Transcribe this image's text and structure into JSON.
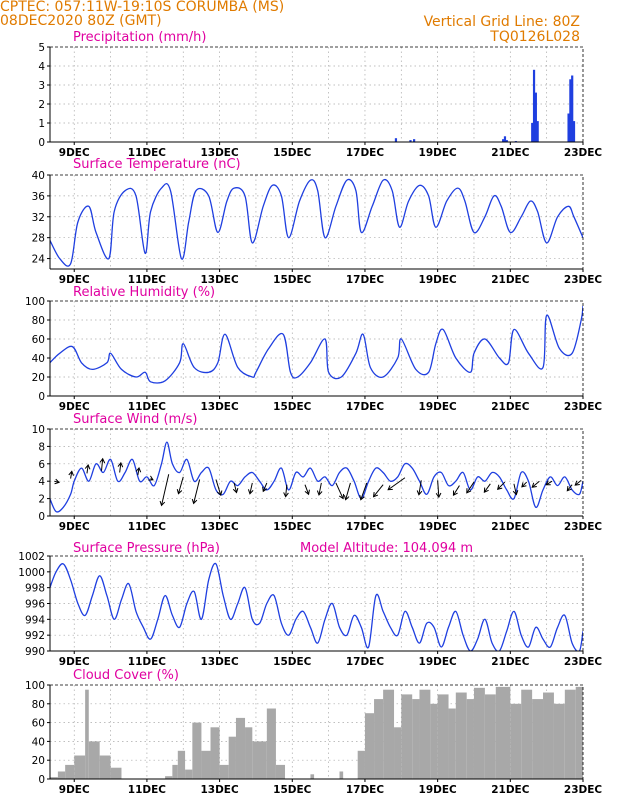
{
  "header": {
    "line1_left": "CPTEC:   057:11W-19:10S   CORUMBA (MS)",
    "line2_left": "08DEC2020 80Z (GMT)",
    "line1_right": "Vertical Grid Line: 80Z",
    "line2_right": "TQ0126L028"
  },
  "colors": {
    "series": "#1f3fe0",
    "title": "#e000a0",
    "header": "#e07b00",
    "cloud": "#a8a8a8",
    "wind_arrow": "#000000",
    "grid": "#aaaaaa"
  },
  "x_axis": {
    "tick_labels": [
      "9DEC",
      "11DEC",
      "13DEC",
      "15DEC",
      "17DEC",
      "19DEC",
      "21DEC",
      "23DEC"
    ]
  },
  "chart_data": [
    {
      "type": "bar",
      "title": "Precipitation (mm/h)",
      "ylim": [
        0,
        5
      ],
      "yticks": [
        0,
        1,
        2,
        3,
        4,
        5
      ],
      "grid": true,
      "x_range_days": [
        8.333,
        23.0
      ],
      "x_unit": "December 2020 (day)",
      "bars": [
        {
          "x": 17.85,
          "y": 0.2
        },
        {
          "x": 18.25,
          "y": 0.1
        },
        {
          "x": 18.35,
          "y": 0.15
        },
        {
          "x": 20.8,
          "y": 0.15
        },
        {
          "x": 20.85,
          "y": 0.3
        },
        {
          "x": 20.9,
          "y": 0.1
        },
        {
          "x": 21.15,
          "y": 0.05
        },
        {
          "x": 21.6,
          "y": 1.0
        },
        {
          "x": 21.65,
          "y": 3.8
        },
        {
          "x": 21.7,
          "y": 2.6
        },
        {
          "x": 21.75,
          "y": 1.1
        },
        {
          "x": 22.6,
          "y": 1.5
        },
        {
          "x": 22.65,
          "y": 3.3
        },
        {
          "x": 22.7,
          "y": 3.5
        },
        {
          "x": 22.75,
          "y": 1.1
        }
      ]
    },
    {
      "type": "line",
      "title": "Surface Temperature (nC)",
      "ylim": [
        22,
        40
      ],
      "yticks": [
        24,
        28,
        32,
        36,
        40
      ],
      "grid": true,
      "x": [
        8.33,
        8.6,
        8.9,
        9.1,
        9.4,
        9.6,
        9.95,
        10.1,
        10.4,
        10.7,
        10.95,
        11.1,
        11.4,
        11.65,
        11.95,
        12.15,
        12.35,
        12.7,
        12.95,
        13.2,
        13.4,
        13.7,
        13.9,
        14.2,
        14.45,
        14.7,
        14.9,
        15.2,
        15.5,
        15.7,
        15.9,
        16.2,
        16.5,
        16.75,
        16.9,
        17.2,
        17.5,
        17.75,
        17.95,
        18.2,
        18.5,
        18.75,
        18.95,
        19.25,
        19.55,
        19.75,
        20.0,
        20.3,
        20.55,
        20.75,
        21.0,
        21.3,
        21.55,
        21.75,
        22.0,
        22.3,
        22.6,
        22.75,
        23.0
      ],
      "y": [
        27.5,
        24,
        23,
        31,
        34,
        29,
        24,
        33,
        37,
        36,
        25,
        33,
        37.5,
        37,
        24,
        31,
        37,
        36,
        29,
        35,
        37.5,
        36,
        27,
        34,
        38,
        36,
        28,
        35,
        39,
        37,
        28,
        34,
        39,
        37,
        29,
        34,
        39,
        37,
        30,
        35,
        38,
        36,
        30,
        35,
        37.5,
        35,
        29,
        32,
        36,
        34,
        29,
        32,
        35,
        33,
        27,
        32,
        34,
        32,
        28
      ]
    },
    {
      "type": "line",
      "title": "Relative Humidity (%)",
      "ylim": [
        0,
        100
      ],
      "yticks": [
        0,
        20,
        40,
        60,
        80,
        100
      ],
      "grid": true,
      "x": [
        8.33,
        8.6,
        8.95,
        9.2,
        9.5,
        9.9,
        10.0,
        10.3,
        10.7,
        10.95,
        11.1,
        11.5,
        11.9,
        12.0,
        12.3,
        12.7,
        12.95,
        13.15,
        13.5,
        13.9,
        14.0,
        14.35,
        14.75,
        14.95,
        15.15,
        15.5,
        15.9,
        16.0,
        16.35,
        16.75,
        16.95,
        17.15,
        17.5,
        17.9,
        18.0,
        18.4,
        18.75,
        18.95,
        19.15,
        19.5,
        19.9,
        20.0,
        20.3,
        20.7,
        20.95,
        21.1,
        21.5,
        21.9,
        22.0,
        22.35,
        22.7,
        22.95,
        23.0
      ],
      "y": [
        35,
        45,
        52,
        35,
        28,
        35,
        45,
        28,
        20,
        25,
        15,
        16,
        35,
        55,
        30,
        25,
        35,
        65,
        30,
        20,
        25,
        50,
        65,
        25,
        20,
        35,
        60,
        25,
        20,
        45,
        65,
        30,
        20,
        40,
        60,
        28,
        25,
        55,
        70,
        40,
        25,
        45,
        60,
        40,
        35,
        70,
        45,
        30,
        85,
        50,
        45,
        80,
        95
      ]
    },
    {
      "type": "line",
      "title": "Surface Wind (m/s)",
      "ylim": [
        0,
        10
      ],
      "yticks": [
        0,
        2,
        4,
        6,
        8,
        10
      ],
      "grid": true,
      "x": [
        8.33,
        8.5,
        8.7,
        8.9,
        9.0,
        9.2,
        9.4,
        9.6,
        9.8,
        10.0,
        10.2,
        10.4,
        10.6,
        10.8,
        11.0,
        11.2,
        11.4,
        11.55,
        11.7,
        11.9,
        12.1,
        12.3,
        12.5,
        12.7,
        12.9,
        13.1,
        13.3,
        13.5,
        13.7,
        13.9,
        14.1,
        14.3,
        14.5,
        14.7,
        14.9,
        15.1,
        15.3,
        15.5,
        15.7,
        15.9,
        16.1,
        16.3,
        16.5,
        16.7,
        16.9,
        17.1,
        17.3,
        17.5,
        17.7,
        17.9,
        18.1,
        18.3,
        18.5,
        18.7,
        18.9,
        19.1,
        19.3,
        19.5,
        19.7,
        19.9,
        20.1,
        20.3,
        20.5,
        20.7,
        20.9,
        21.1,
        21.3,
        21.5,
        21.7,
        21.9,
        22.1,
        22.3,
        22.5,
        22.7,
        22.9,
        23.0
      ],
      "y": [
        2,
        0.5,
        1,
        2.5,
        4,
        5.5,
        4,
        6,
        5,
        6.5,
        4,
        5,
        6.5,
        4,
        4.5,
        3.5,
        6,
        8.5,
        6,
        5,
        6.5,
        4,
        5,
        5.5,
        3,
        2.5,
        4,
        3.5,
        4.5,
        5,
        4,
        3,
        4,
        5.5,
        3,
        5,
        4.5,
        5.5,
        4,
        4.5,
        3.5,
        5,
        5.5,
        4,
        2,
        4,
        5.5,
        5,
        4,
        4.5,
        6,
        5.5,
        4,
        2.5,
        4.5,
        5,
        3.5,
        4,
        5,
        3,
        4.5,
        4,
        5,
        4.5,
        3,
        2,
        5,
        4,
        1,
        3,
        4.5,
        3.5,
        4.5,
        3,
        2.5,
        4
      ],
      "arrows": [
        {
          "x": 8.45,
          "y": 4.0,
          "u": 0.4,
          "v": -0.1
        },
        {
          "x": 8.9,
          "y": 4.3,
          "u": 0.1,
          "v": 0.6
        },
        {
          "x": 9.35,
          "y": 4.9,
          "u": 0.1,
          "v": 0.7
        },
        {
          "x": 9.75,
          "y": 5.2,
          "u": 0.1,
          "v": 1.0
        },
        {
          "x": 10.25,
          "y": 5.0,
          "u": 0.1,
          "v": 0.8
        },
        {
          "x": 10.75,
          "y": 4.7,
          "u": 0.1,
          "v": 0.6
        },
        {
          "x": 11.1,
          "y": 4.3,
          "u": 0.2,
          "v": -0.1
        },
        {
          "x": 11.6,
          "y": 4.8,
          "u": -0.6,
          "v": -2.6
        },
        {
          "x": 12.0,
          "y": 4.5,
          "u": -0.4,
          "v": -1.4
        },
        {
          "x": 12.45,
          "y": 4.2,
          "u": -0.5,
          "v": -2.0
        },
        {
          "x": 12.9,
          "y": 4.2,
          "u": 0.4,
          "v": -1.3
        },
        {
          "x": 13.4,
          "y": 3.8,
          "u": 0.2,
          "v": -0.8
        },
        {
          "x": 13.9,
          "y": 3.8,
          "u": -0.2,
          "v": -0.9
        },
        {
          "x": 14.3,
          "y": 3.8,
          "u": -0.3,
          "v": -0.7
        },
        {
          "x": 14.85,
          "y": 3.6,
          "u": -0.1,
          "v": -1.0
        },
        {
          "x": 15.35,
          "y": 3.6,
          "u": 0.3,
          "v": -0.8
        },
        {
          "x": 15.8,
          "y": 3.8,
          "u": -0.2,
          "v": -1.0
        },
        {
          "x": 16.2,
          "y": 3.8,
          "u": 0.6,
          "v": -1.3
        },
        {
          "x": 16.6,
          "y": 3.8,
          "u": -0.4,
          "v": -1.4
        },
        {
          "x": 17.05,
          "y": 3.8,
          "u": -0.5,
          "v": -1.4
        },
        {
          "x": 17.5,
          "y": 3.6,
          "u": -0.8,
          "v": -1.0
        },
        {
          "x": 18.1,
          "y": 4.4,
          "u": -1.4,
          "v": -1.0
        },
        {
          "x": 18.55,
          "y": 4.1,
          "u": -0.2,
          "v": -1.2
        },
        {
          "x": 19.0,
          "y": 4.1,
          "u": 0.1,
          "v": -1.4
        },
        {
          "x": 19.6,
          "y": 3.5,
          "u": -0.5,
          "v": -0.8
        },
        {
          "x": 20.0,
          "y": 3.9,
          "u": -0.6,
          "v": -0.9
        },
        {
          "x": 20.45,
          "y": 3.7,
          "u": -0.5,
          "v": -0.7
        },
        {
          "x": 20.85,
          "y": 3.9,
          "u": -0.6,
          "v": -0.6
        },
        {
          "x": 21.1,
          "y": 3.7,
          "u": 0.2,
          "v": -0.9
        },
        {
          "x": 21.45,
          "y": 3.9,
          "u": -0.4,
          "v": -0.4
        },
        {
          "x": 21.8,
          "y": 4.0,
          "u": -0.6,
          "v": -0.5
        },
        {
          "x": 22.15,
          "y": 4.0,
          "u": -0.5,
          "v": -0.3
        },
        {
          "x": 22.7,
          "y": 3.6,
          "u": -0.4,
          "v": -0.5
        },
        {
          "x": 22.95,
          "y": 4.1,
          "u": -0.5,
          "v": -0.4
        }
      ]
    },
    {
      "type": "line",
      "title": "Surface Pressure (hPa)",
      "annotation": "Model Altitude: 104.094 m",
      "ylim": [
        990,
        1002
      ],
      "yticks": [
        990,
        992,
        994,
        996,
        998,
        1000,
        1002
      ],
      "grid": true,
      "x": [
        8.33,
        8.5,
        8.7,
        8.9,
        9.1,
        9.3,
        9.5,
        9.7,
        9.9,
        10.1,
        10.3,
        10.5,
        10.7,
        10.9,
        11.1,
        11.3,
        11.5,
        11.7,
        11.9,
        12.1,
        12.3,
        12.5,
        12.7,
        12.9,
        13.1,
        13.3,
        13.5,
        13.7,
        13.9,
        14.1,
        14.3,
        14.5,
        14.7,
        14.9,
        15.1,
        15.3,
        15.5,
        15.7,
        15.9,
        16.1,
        16.3,
        16.5,
        16.7,
        16.9,
        17.1,
        17.3,
        17.5,
        17.7,
        17.9,
        18.1,
        18.3,
        18.5,
        18.7,
        18.9,
        19.1,
        19.3,
        19.5,
        19.7,
        19.9,
        20.1,
        20.3,
        20.5,
        20.7,
        20.9,
        21.1,
        21.3,
        21.5,
        21.7,
        21.9,
        22.1,
        22.3,
        22.5,
        22.7,
        22.9,
        23.0
      ],
      "y": [
        998,
        1000,
        1001,
        999,
        996,
        994.5,
        997,
        999.5,
        997,
        994,
        996.5,
        998.5,
        995,
        993,
        991.5,
        994,
        997,
        994.5,
        993,
        996,
        997.5,
        994,
        999,
        1001,
        997,
        994,
        996,
        998,
        994,
        993.5,
        996,
        997,
        993.5,
        992,
        994,
        995,
        993,
        991,
        994,
        996,
        993,
        992,
        994.5,
        993,
        990.5,
        997,
        995,
        993,
        992,
        995,
        993,
        991,
        993.5,
        993,
        990.5,
        993,
        995,
        992,
        990,
        991.5,
        994,
        991,
        990,
        992.5,
        995,
        992,
        990.5,
        993,
        991.5,
        990.5,
        993,
        994.5,
        991,
        990,
        992.5
      ]
    },
    {
      "type": "bar",
      "title": "Cloud Cover (%)",
      "ylim": [
        0,
        100
      ],
      "yticks": [
        0,
        20,
        40,
        60,
        80,
        100
      ],
      "grid": true,
      "segments": [
        {
          "from": 8.33,
          "to": 8.55,
          "y": 2
        },
        {
          "from": 8.55,
          "to": 8.75,
          "y": 8
        },
        {
          "from": 8.75,
          "to": 9.0,
          "y": 15
        },
        {
          "from": 9.0,
          "to": 9.3,
          "y": 25
        },
        {
          "from": 9.3,
          "to": 9.4,
          "y": 95
        },
        {
          "from": 9.4,
          "to": 9.7,
          "y": 40
        },
        {
          "from": 9.7,
          "to": 10.0,
          "y": 25
        },
        {
          "from": 10.0,
          "to": 10.3,
          "y": 12
        },
        {
          "from": 10.3,
          "to": 11.5,
          "y": 0
        },
        {
          "from": 11.5,
          "to": 11.7,
          "y": 3
        },
        {
          "from": 11.7,
          "to": 11.85,
          "y": 15
        },
        {
          "from": 11.85,
          "to": 12.05,
          "y": 30
        },
        {
          "from": 12.05,
          "to": 12.25,
          "y": 10
        },
        {
          "from": 12.25,
          "to": 12.5,
          "y": 60
        },
        {
          "from": 12.5,
          "to": 12.75,
          "y": 30
        },
        {
          "from": 12.75,
          "to": 13.0,
          "y": 55
        },
        {
          "from": 13.0,
          "to": 13.25,
          "y": 15
        },
        {
          "from": 13.25,
          "to": 13.45,
          "y": 45
        },
        {
          "from": 13.45,
          "to": 13.7,
          "y": 65
        },
        {
          "from": 13.7,
          "to": 13.9,
          "y": 55
        },
        {
          "from": 13.9,
          "to": 14.3,
          "y": 40
        },
        {
          "from": 14.3,
          "to": 14.55,
          "y": 75
        },
        {
          "from": 14.55,
          "to": 14.8,
          "y": 15
        },
        {
          "from": 14.8,
          "to": 15.5,
          "y": 0
        },
        {
          "from": 15.5,
          "to": 15.6,
          "y": 5
        },
        {
          "from": 15.6,
          "to": 16.3,
          "y": 0
        },
        {
          "from": 16.3,
          "to": 16.4,
          "y": 8
        },
        {
          "from": 16.4,
          "to": 16.8,
          "y": 0
        },
        {
          "from": 16.8,
          "to": 17.0,
          "y": 30
        },
        {
          "from": 17.0,
          "to": 17.25,
          "y": 70
        },
        {
          "from": 17.25,
          "to": 17.5,
          "y": 85
        },
        {
          "from": 17.5,
          "to": 17.8,
          "y": 95
        },
        {
          "from": 17.8,
          "to": 18.0,
          "y": 55
        },
        {
          "from": 18.0,
          "to": 18.3,
          "y": 90
        },
        {
          "from": 18.3,
          "to": 18.5,
          "y": 85
        },
        {
          "from": 18.5,
          "to": 18.8,
          "y": 95
        },
        {
          "from": 18.8,
          "to": 19.0,
          "y": 80
        },
        {
          "from": 19.0,
          "to": 19.3,
          "y": 90
        },
        {
          "from": 19.3,
          "to": 19.5,
          "y": 75
        },
        {
          "from": 19.5,
          "to": 19.8,
          "y": 92
        },
        {
          "from": 19.8,
          "to": 20.0,
          "y": 85
        },
        {
          "from": 20.0,
          "to": 20.3,
          "y": 97
        },
        {
          "from": 20.3,
          "to": 20.6,
          "y": 90
        },
        {
          "from": 20.6,
          "to": 21.0,
          "y": 98
        },
        {
          "from": 21.0,
          "to": 21.3,
          "y": 80
        },
        {
          "from": 21.3,
          "to": 21.6,
          "y": 95
        },
        {
          "from": 21.6,
          "to": 21.9,
          "y": 85
        },
        {
          "from": 21.9,
          "to": 22.2,
          "y": 92
        },
        {
          "from": 22.2,
          "to": 22.5,
          "y": 80
        },
        {
          "from": 22.5,
          "to": 22.8,
          "y": 95
        },
        {
          "from": 22.8,
          "to": 23.0,
          "y": 98
        }
      ]
    }
  ]
}
